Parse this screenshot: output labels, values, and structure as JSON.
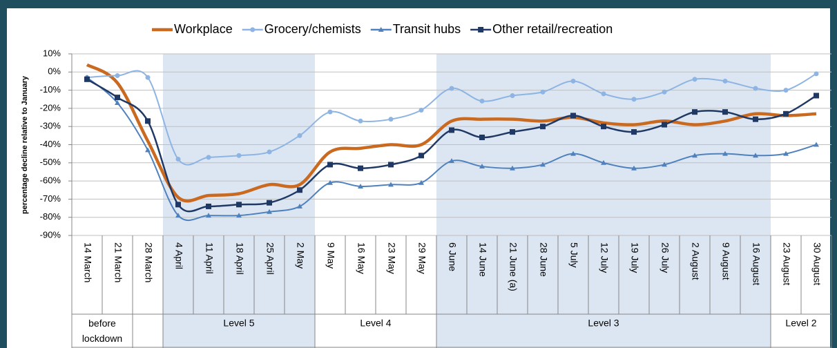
{
  "chart_data": {
    "type": "line",
    "y_label": "percentage decline relative to January",
    "categories": [
      "14 March",
      "21 March",
      "28 March",
      "4 April",
      "11 April",
      "18 April",
      "25 April",
      "2 May",
      "9 May",
      "16 May",
      "23 May",
      "29 May",
      "6 June",
      "14 June",
      "21 June (a)",
      "28 June",
      "5 July",
      "12 July",
      "19 July",
      "26 July",
      "2 August",
      "9 August",
      "16 August",
      "23 August",
      "30 August"
    ],
    "levels": [
      "before lockdown",
      "Level 5",
      "Level 4",
      "Level 3",
      "Level 2"
    ],
    "series": [
      {
        "name": "Workplace",
        "color": "#c96a20",
        "marker": "none",
        "values": [
          4,
          -6,
          -38,
          -69,
          -68,
          -67,
          -62,
          -62,
          -44,
          -42,
          -40,
          -40,
          -27,
          -26,
          -26,
          -27,
          -25,
          -28,
          -29,
          -27,
          -29,
          -27,
          -23,
          -24,
          -23
        ]
      },
      {
        "name": "Grocery/chemists",
        "color": "#8db4e2",
        "marker": "circle",
        "values": [
          -3,
          -2,
          -3,
          -48,
          -47,
          -46,
          -44,
          -35,
          -22,
          -27,
          -26,
          -21,
          -9,
          -16,
          -13,
          -11,
          -5,
          -12,
          -15,
          -11,
          -4,
          -5,
          -9,
          -10,
          -1
        ]
      },
      {
        "name": "Transit hubs",
        "color": "#4f81bd",
        "marker": "triangle",
        "values": [
          -3,
          -17,
          -43,
          -79,
          -79,
          -79,
          -77,
          -74,
          -61,
          -63,
          -62,
          -61,
          -49,
          -52,
          -53,
          -51,
          -45,
          -50,
          -53,
          -51,
          -46,
          -45,
          -46,
          -45,
          -40
        ]
      },
      {
        "name": "Other retail/recreation",
        "color": "#1f3864",
        "marker": "square",
        "values": [
          -4,
          -14,
          -27,
          -73,
          -74,
          -73,
          -72,
          -65,
          -51,
          -53,
          -51,
          -46,
          -32,
          -36,
          -33,
          -30,
          -24,
          -30,
          -33,
          -29,
          -22,
          -22,
          -26,
          -23,
          -13
        ]
      }
    ],
    "ylim": [
      -90,
      10
    ],
    "yticks": [
      {
        "value": 10,
        "label": "10%"
      },
      {
        "value": 0,
        "label": "0%"
      },
      {
        "value": -10,
        "label": "-10%"
      },
      {
        "value": -20,
        "label": "-20%"
      },
      {
        "value": -30,
        "label": "-30%"
      },
      {
        "value": -40,
        "label": "-40%"
      },
      {
        "value": -50,
        "label": "-50%"
      },
      {
        "value": -60,
        "label": "-60%"
      },
      {
        "value": -70,
        "label": "-70%"
      },
      {
        "value": -80,
        "label": "-80%"
      },
      {
        "value": -90,
        "label": "-90%"
      }
    ],
    "grid": true
  }
}
